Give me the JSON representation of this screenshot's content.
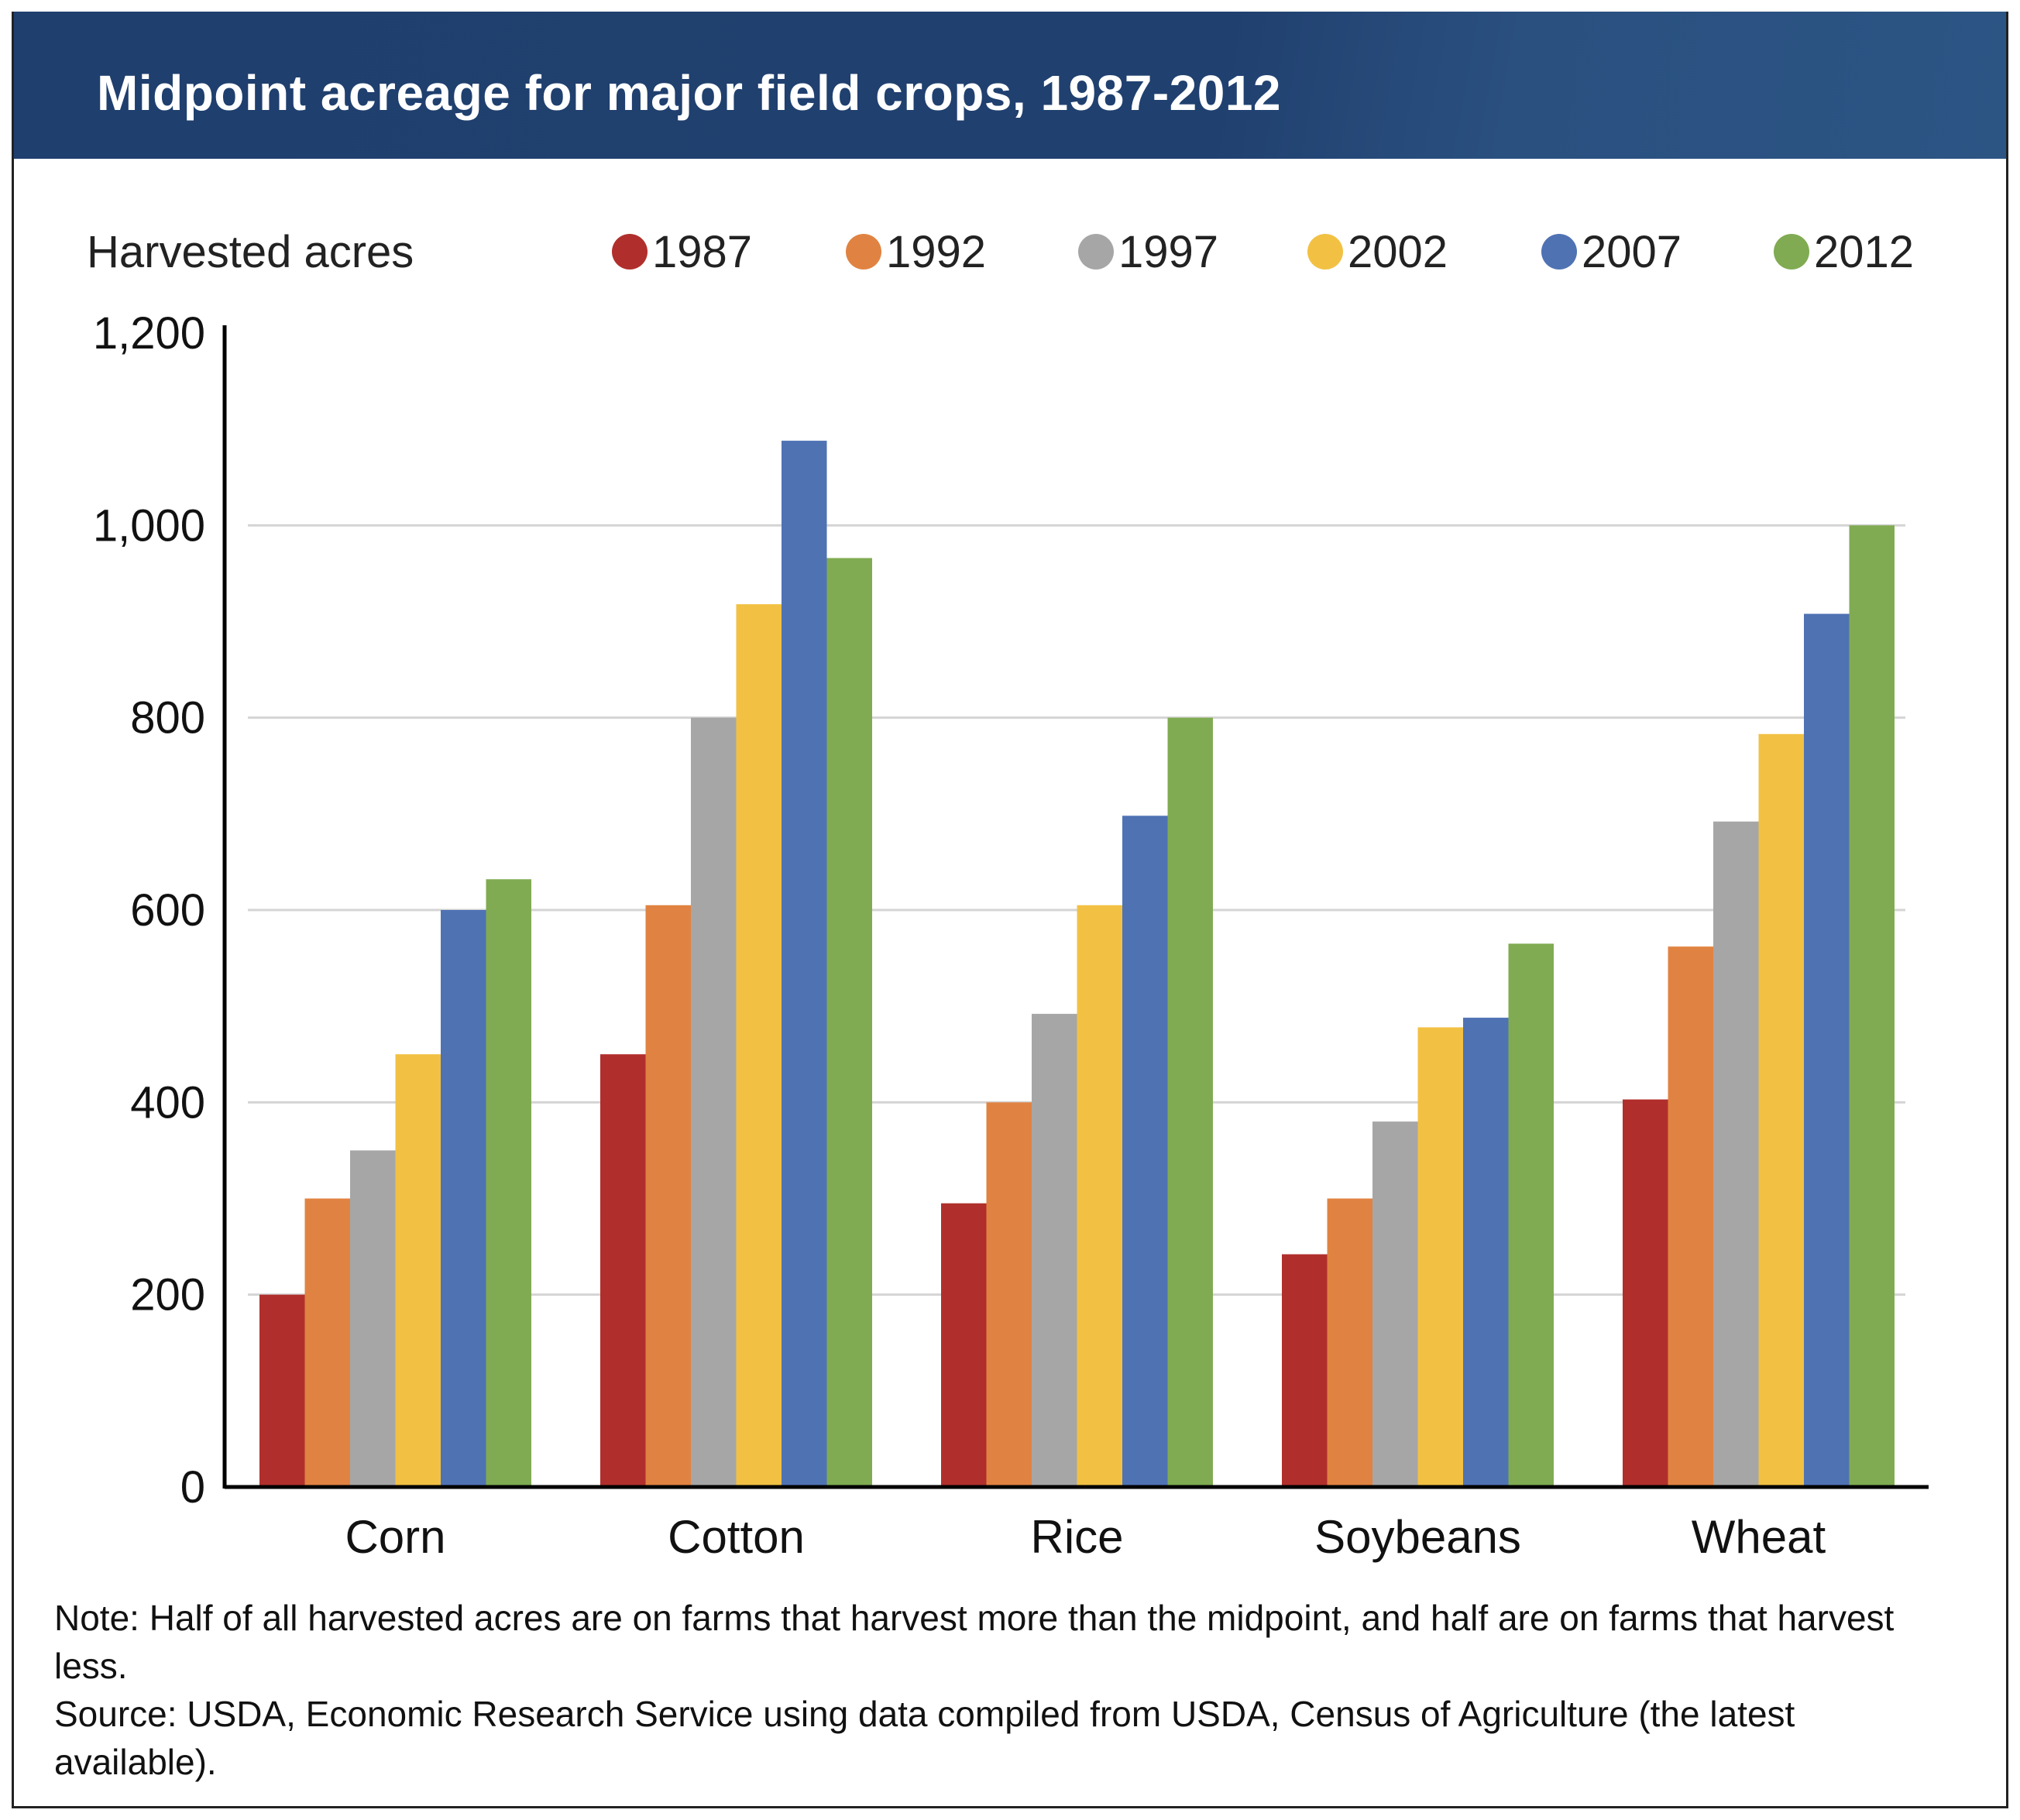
{
  "header": {
    "title": "Midpoint acreage for major field crops, 1987-2012",
    "background_color": "#1f3f6e"
  },
  "legend": {
    "label": "Harvested acres",
    "items": [
      {
        "label": "1987",
        "color": "#b02f2c"
      },
      {
        "label": "1992",
        "color": "#e08342"
      },
      {
        "label": "1997",
        "color": "#a6a6a6"
      },
      {
        "label": "2002",
        "color": "#f2c144"
      },
      {
        "label": "2007",
        "color": "#4f72b3"
      },
      {
        "label": "2012",
        "color": "#80ab52"
      }
    ]
  },
  "chart_data": {
    "type": "bar",
    "title": "Midpoint acreage for major field crops, 1987-2012",
    "xlabel": "",
    "ylabel": "Harvested acres",
    "ylim": [
      0,
      1200
    ],
    "yticks": [
      0,
      200,
      400,
      600,
      800,
      1000,
      1200
    ],
    "ytick_labels": [
      "0",
      "200",
      "400",
      "600",
      "800",
      "1,000",
      "1,200"
    ],
    "grid": true,
    "legend_position": "top",
    "categories": [
      "Corn",
      "Cotton",
      "Rice",
      "Soybeans",
      "Wheat"
    ],
    "series": [
      {
        "name": "1987",
        "color": "#b02f2c",
        "values": [
          200,
          450,
          295,
          242,
          403
        ]
      },
      {
        "name": "1992",
        "color": "#e08342",
        "values": [
          300,
          605,
          400,
          300,
          562
        ]
      },
      {
        "name": "1997",
        "color": "#a6a6a6",
        "values": [
          350,
          800,
          492,
          380,
          692
        ]
      },
      {
        "name": "2002",
        "color": "#f2c144",
        "values": [
          450,
          918,
          605,
          478,
          783
        ]
      },
      {
        "name": "2007",
        "color": "#4f72b3",
        "values": [
          600,
          1088,
          698,
          488,
          908
        ]
      },
      {
        "name": "2012",
        "color": "#80ab52",
        "values": [
          632,
          966,
          800,
          565,
          1000
        ]
      }
    ]
  },
  "footer": {
    "note": "Note: Half of all harvested acres are on farms that harvest more than the midpoint, and half are on farms that harvest less.",
    "source": "Source: USDA, Economic Research Service using data compiled from USDA, Census of Agriculture (the latest available)."
  }
}
